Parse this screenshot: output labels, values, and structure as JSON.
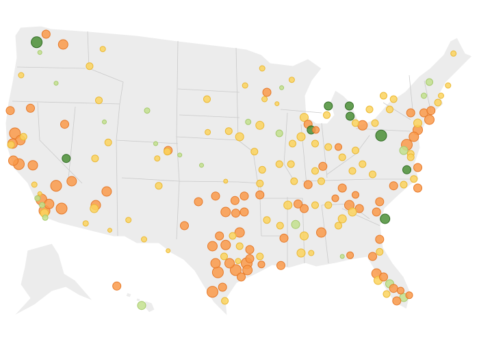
{
  "legend_categories": [
    {
      "id": 0,
      "color": "#fa9a4a",
      "stroke": "#e57828"
    },
    {
      "id": 1,
      "color": "#fbd35e",
      "stroke": "#eab835"
    },
    {
      "id": 2,
      "color": "#c3e08e",
      "stroke": "#a5c96c"
    },
    {
      "id": 3,
      "color": "#4b8f36",
      "stroke": "#2f6b22"
    }
  ],
  "background_color": "#ffffff",
  "land_color": "#ececec",
  "points": [
    [
      -121.1,
      48.3,
      8,
      3
    ],
    [
      -119.9,
      49.0,
      6,
      0
    ],
    [
      -117.7,
      48.1,
      7,
      0
    ],
    [
      -120.7,
      47.4,
      3,
      2
    ],
    [
      -123.1,
      45.4,
      4,
      1
    ],
    [
      -118.6,
      44.7,
      3,
      2
    ],
    [
      -112.6,
      47.7,
      4,
      1
    ],
    [
      -114.3,
      46.2,
      5,
      1
    ],
    [
      -113.1,
      43.2,
      5,
      1
    ],
    [
      -106.9,
      42.3,
      4,
      2
    ],
    [
      -112.4,
      41.3,
      3,
      2
    ],
    [
      -124.5,
      42.3,
      6,
      0
    ],
    [
      -121.9,
      42.5,
      6,
      0
    ],
    [
      -117.5,
      41.1,
      6,
      0
    ],
    [
      -123.9,
      40.3,
      8,
      0
    ],
    [
      -123.2,
      39.7,
      7,
      0
    ],
    [
      -124.2,
      39.4,
      7,
      0
    ],
    [
      -122.8,
      40.0,
      5,
      1
    ],
    [
      -124.4,
      39.3,
      5,
      1
    ],
    [
      -124.1,
      37.9,
      7,
      0
    ],
    [
      -123.4,
      37.6,
      8,
      0
    ],
    [
      -121.6,
      37.5,
      7,
      0
    ],
    [
      -121.4,
      35.8,
      4,
      1
    ],
    [
      -120.7,
      35.0,
      3,
      1
    ],
    [
      -117.3,
      38.1,
      6,
      3
    ],
    [
      -116.6,
      36.1,
      7,
      0
    ],
    [
      -118.6,
      35.7,
      8,
      0
    ],
    [
      -120.5,
      34.5,
      8,
      0
    ],
    [
      -119.5,
      34.1,
      7,
      0
    ],
    [
      -120.1,
      33.5,
      8,
      0
    ],
    [
      -117.9,
      33.7,
      8,
      0
    ],
    [
      -121.0,
      34.6,
      4,
      2
    ],
    [
      -120.4,
      34.0,
      4,
      2
    ],
    [
      -120.1,
      33.3,
      6,
      1
    ],
    [
      -120.0,
      32.9,
      4,
      2
    ],
    [
      -112.1,
      35.2,
      7,
      0
    ],
    [
      -113.5,
      34.0,
      7,
      0
    ],
    [
      -113.7,
      33.7,
      6,
      1
    ],
    [
      -114.8,
      32.4,
      4,
      1
    ],
    [
      -111.7,
      31.8,
      3,
      1
    ],
    [
      -111.9,
      39.5,
      5,
      1
    ],
    [
      -113.6,
      38.1,
      5,
      1
    ],
    [
      -105.8,
      39.4,
      3,
      2
    ],
    [
      -104.2,
      38.8,
      6,
      0
    ],
    [
      -104.3,
      38.7,
      5,
      1
    ],
    [
      -105.6,
      38.1,
      4,
      1
    ],
    [
      -102.7,
      38.4,
      3,
      2
    ],
    [
      -105.4,
      35.7,
      5,
      1
    ],
    [
      -107.3,
      31.0,
      4,
      1
    ],
    [
      -109.3,
      32.7,
      4,
      1
    ],
    [
      -102.1,
      32.2,
      6,
      0
    ],
    [
      -104.2,
      30.0,
      3,
      1
    ],
    [
      -100.3,
      34.3,
      6,
      0
    ],
    [
      -98.1,
      34.8,
      6,
      0
    ],
    [
      -95.6,
      34.4,
      6,
      0
    ],
    [
      -94.4,
      34.8,
      6,
      0
    ],
    [
      -96.8,
      33.4,
      7,
      0
    ],
    [
      -95.5,
      33.3,
      6,
      0
    ],
    [
      -94.4,
      33.4,
      6,
      0
    ],
    [
      -97.6,
      31.3,
      6,
      0
    ],
    [
      -95.0,
      31.6,
      7,
      0
    ],
    [
      -98.5,
      30.4,
      7,
      0
    ],
    [
      -96.8,
      30.5,
      7,
      0
    ],
    [
      -98.1,
      28.9,
      7,
      0
    ],
    [
      -97.8,
      28.1,
      8,
      0
    ],
    [
      -96.3,
      28.9,
      7,
      0
    ],
    [
      -95.5,
      28.3,
      8,
      0
    ],
    [
      -94.1,
      28.9,
      8,
      0
    ],
    [
      -93.7,
      29.3,
      6,
      0
    ],
    [
      -94.0,
      28.3,
      7,
      0
    ],
    [
      -94.8,
      27.7,
      6,
      0
    ],
    [
      -98.5,
      26.4,
      8,
      0
    ],
    [
      -97.2,
      26.8,
      6,
      0
    ],
    [
      -96.9,
      25.6,
      5,
      1
    ],
    [
      -92.4,
      29.5,
      5,
      1
    ],
    [
      -92.2,
      28.8,
      5,
      0
    ],
    [
      -95.2,
      29.1,
      4,
      1
    ],
    [
      -97.0,
      29.5,
      5,
      1
    ],
    [
      -95.9,
      31.3,
      5,
      1
    ],
    [
      -96.8,
      36.1,
      3,
      1
    ],
    [
      -92.4,
      34.9,
      6,
      0
    ],
    [
      -95.0,
      30.4,
      5,
      1
    ],
    [
      -93.7,
      30.1,
      6,
      0
    ],
    [
      -99.2,
      43.3,
      5,
      1
    ],
    [
      -99.1,
      40.4,
      4,
      1
    ],
    [
      -99.9,
      37.5,
      3,
      2
    ],
    [
      -94.3,
      44.5,
      4,
      1
    ],
    [
      -92.1,
      46.0,
      4,
      1
    ],
    [
      -91.5,
      43.9,
      6,
      0
    ],
    [
      -91.8,
      43.3,
      4,
      1
    ],
    [
      -90.2,
      42.9,
      3,
      1
    ],
    [
      -89.6,
      44.3,
      3,
      2
    ],
    [
      -88.3,
      45.0,
      4,
      1
    ],
    [
      -93.9,
      41.3,
      4,
      2
    ],
    [
      -92.4,
      41.0,
      6,
      1
    ],
    [
      -95.0,
      40.0,
      6,
      1
    ],
    [
      -96.4,
      40.5,
      5,
      1
    ],
    [
      -93.1,
      38.7,
      5,
      1
    ],
    [
      -92.1,
      37.1,
      5,
      1
    ],
    [
      -92.4,
      35.9,
      5,
      1
    ],
    [
      -89.9,
      40.3,
      5,
      2
    ],
    [
      -89.9,
      37.6,
      5,
      1
    ],
    [
      -88.2,
      39.4,
      5,
      1
    ],
    [
      -86.7,
      41.7,
      6,
      1
    ],
    [
      -86.2,
      41.1,
      6,
      0
    ],
    [
      -85.8,
      40.6,
      6,
      3
    ],
    [
      -85.2,
      40.6,
      5,
      0
    ],
    [
      -83.6,
      42.7,
      6,
      3
    ],
    [
      -83.8,
      41.9,
      5,
      1
    ],
    [
      -80.9,
      42.7,
      6,
      3
    ],
    [
      -80.8,
      41.8,
      6,
      3
    ],
    [
      -79.2,
      41.0,
      7,
      0
    ],
    [
      -77.6,
      41.2,
      5,
      1
    ],
    [
      -76.8,
      40.1,
      8,
      3
    ],
    [
      -75.2,
      43.3,
      5,
      1
    ],
    [
      -73.0,
      42.1,
      6,
      0
    ],
    [
      -71.3,
      42.1,
      6,
      0
    ],
    [
      -70.6,
      41.5,
      7,
      0
    ],
    [
      -70.4,
      42.3,
      6,
      0
    ],
    [
      -69.5,
      43.0,
      5,
      1
    ],
    [
      -70.6,
      44.8,
      5,
      2
    ],
    [
      -68.2,
      44.5,
      4,
      1
    ],
    [
      -67.5,
      47.3,
      4,
      1
    ],
    [
      -72.1,
      40.6,
      7,
      0
    ],
    [
      -72.6,
      40.0,
      7,
      0
    ],
    [
      -73.5,
      39.3,
      8,
      0
    ],
    [
      -73.9,
      38.8,
      6,
      2
    ],
    [
      -73.0,
      38.5,
      5,
      1
    ],
    [
      -72.1,
      37.3,
      6,
      0
    ],
    [
      -73.5,
      37.1,
      6,
      3
    ],
    [
      -72.6,
      36.3,
      5,
      1
    ],
    [
      -72.1,
      35.5,
      6,
      0
    ],
    [
      -73.9,
      35.8,
      5,
      1
    ],
    [
      -75.2,
      35.7,
      6,
      0
    ],
    [
      -77.0,
      34.3,
      6,
      0
    ],
    [
      -76.3,
      32.8,
      7,
      3
    ],
    [
      -77.4,
      33.4,
      6,
      0
    ],
    [
      -79.6,
      33.7,
      6,
      0
    ],
    [
      -80.9,
      34.0,
      7,
      0
    ],
    [
      -80.5,
      33.4,
      6,
      1
    ],
    [
      -81.8,
      32.8,
      6,
      1
    ],
    [
      -80.1,
      34.9,
      5,
      0
    ],
    [
      -82.7,
      34.6,
      5,
      0
    ],
    [
      -83.6,
      34.0,
      5,
      1
    ],
    [
      -85.3,
      34.0,
      5,
      1
    ],
    [
      -86.7,
      33.7,
      6,
      0
    ],
    [
      -87.5,
      34.1,
      6,
      0
    ],
    [
      -84.5,
      31.6,
      7,
      0
    ],
    [
      -82.3,
      32.2,
      5,
      1
    ],
    [
      -86.7,
      31.3,
      6,
      1
    ],
    [
      -87.8,
      32.3,
      6,
      2
    ],
    [
      -89.8,
      32.2,
      5,
      1
    ],
    [
      -91.5,
      32.7,
      5,
      1
    ],
    [
      -89.3,
      31.1,
      6,
      0
    ],
    [
      -89.7,
      28.7,
      6,
      0
    ],
    [
      -87.1,
      29.8,
      6,
      1
    ],
    [
      -85.8,
      29.8,
      4,
      1
    ],
    [
      -80.8,
      29.6,
      5,
      0
    ],
    [
      -77.9,
      29.5,
      6,
      0
    ],
    [
      -77.0,
      31.0,
      6,
      0
    ],
    [
      -77.0,
      29.9,
      5,
      1
    ],
    [
      -77.4,
      28.0,
      7,
      0
    ],
    [
      -77.2,
      27.4,
      6,
      1
    ],
    [
      -76.5,
      27.7,
      6,
      0
    ],
    [
      -75.7,
      27.1,
      6,
      2
    ],
    [
      -75.2,
      26.7,
      6,
      0
    ],
    [
      -74.3,
      26.5,
      5,
      0
    ],
    [
      -73.9,
      25.9,
      6,
      2
    ],
    [
      -76.1,
      26.2,
      5,
      1
    ],
    [
      -74.8,
      25.6,
      6,
      0
    ],
    [
      -73.2,
      26.1,
      5,
      0
    ],
    [
      -85.3,
      37.0,
      5,
      1
    ],
    [
      -84.3,
      37.4,
      6,
      0
    ],
    [
      -81.8,
      38.2,
      5,
      1
    ],
    [
      -80.1,
      38.8,
      5,
      1
    ],
    [
      -80.5,
      37.0,
      5,
      1
    ],
    [
      -77.9,
      36.7,
      5,
      1
    ],
    [
      -79.2,
      37.6,
      5,
      1
    ],
    [
      -85.3,
      39.4,
      5,
      1
    ],
    [
      -83.6,
      39.1,
      5,
      1
    ],
    [
      -82.3,
      39.1,
      5,
      0
    ],
    [
      -88.4,
      37.6,
      5,
      1
    ],
    [
      -88.0,
      36.1,
      5,
      1
    ],
    [
      -86.2,
      35.8,
      6,
      0
    ],
    [
      -84.5,
      36.1,
      5,
      1
    ],
    [
      -81.8,
      35.5,
      6,
      0
    ],
    [
      -80.1,
      41.2,
      5,
      1
    ],
    [
      -78.3,
      42.4,
      5,
      1
    ],
    [
      -75.7,
      42.4,
      5,
      1
    ],
    [
      -76.5,
      43.6,
      5,
      1
    ],
    [
      -72.1,
      41.2,
      6,
      1
    ],
    [
      -71.3,
      43.6,
      4,
      2
    ],
    [
      -69.1,
      43.6,
      4,
      1
    ],
    [
      -73.0,
      38.2,
      5,
      1
    ],
    [
      -81.8,
      29.5,
      3,
      2
    ],
    [
      -87.1,
      40.0,
      6,
      1
    ],
    [
      -88.8,
      34.0,
      6,
      1
    ],
    [
      -110.8,
      26.9,
      6,
      0
    ],
    [
      -107.6,
      25.2,
      6,
      2
    ]
  ]
}
